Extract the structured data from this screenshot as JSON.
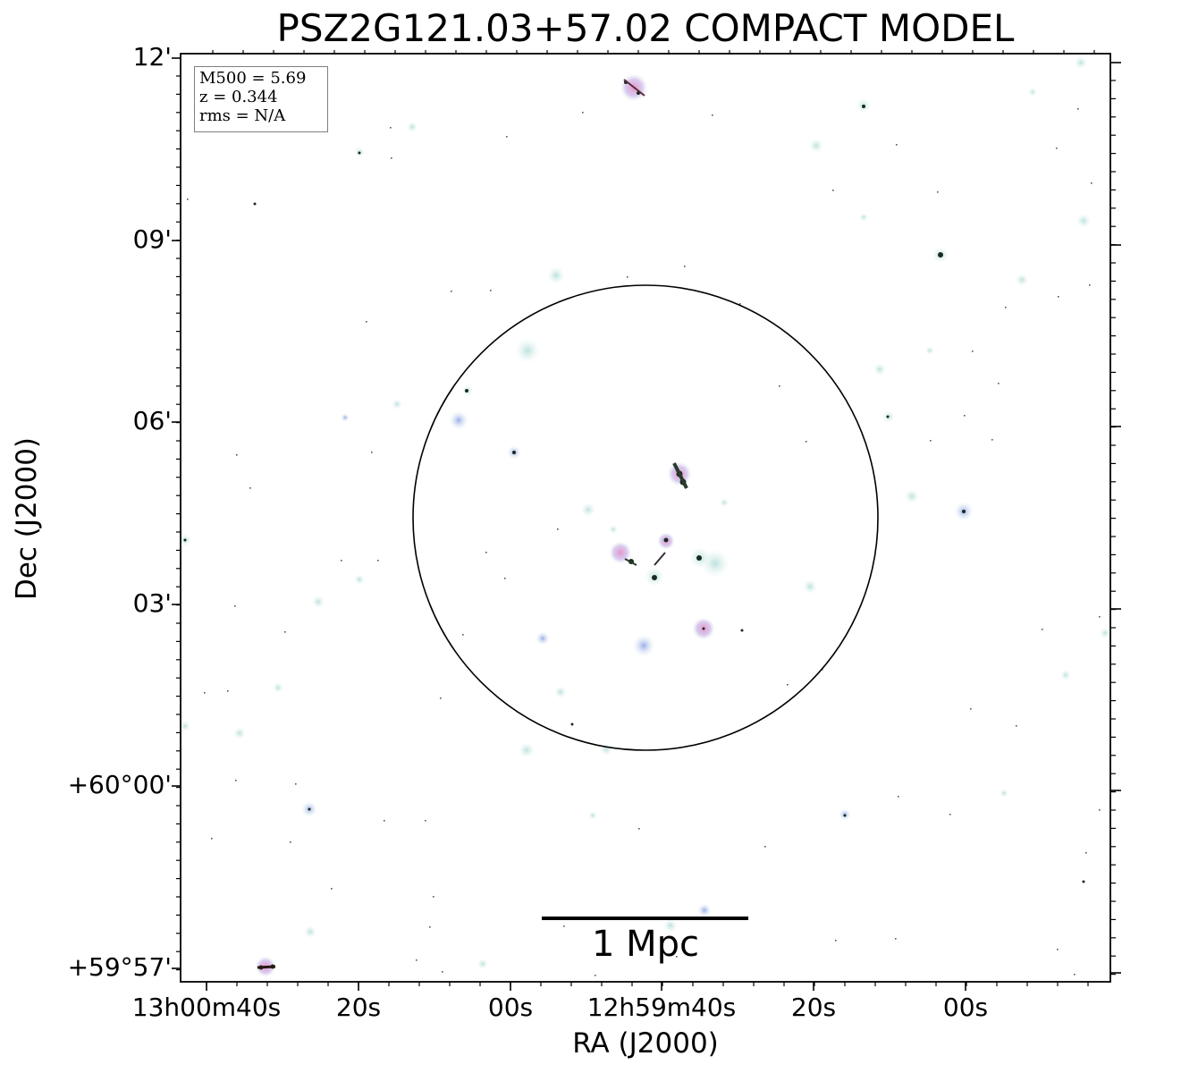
{
  "title": "PSZ2G121.03+57.02 COMPACT MODEL",
  "axes": {
    "xlabel": "RA (J2000)",
    "ylabel": "Dec (J2000)",
    "xticks": [
      "13h00m40s",
      "20s",
      "00s",
      "12h59m40s",
      "20s",
      "00s"
    ],
    "yticks": [
      "12'",
      "09'",
      "06'",
      "03'",
      "+60°00'",
      "+59°57'"
    ]
  },
  "infobox": {
    "line1": "M500 = 5.69",
    "line2": "z = 0.344",
    "line3": "rms = N/A"
  },
  "scalebar": {
    "label": "1 Mpc"
  },
  "colors": {
    "glow": "#cfeae6",
    "source": "#c8a0d8",
    "core": "#1a2a20",
    "frame": "#000000"
  }
}
